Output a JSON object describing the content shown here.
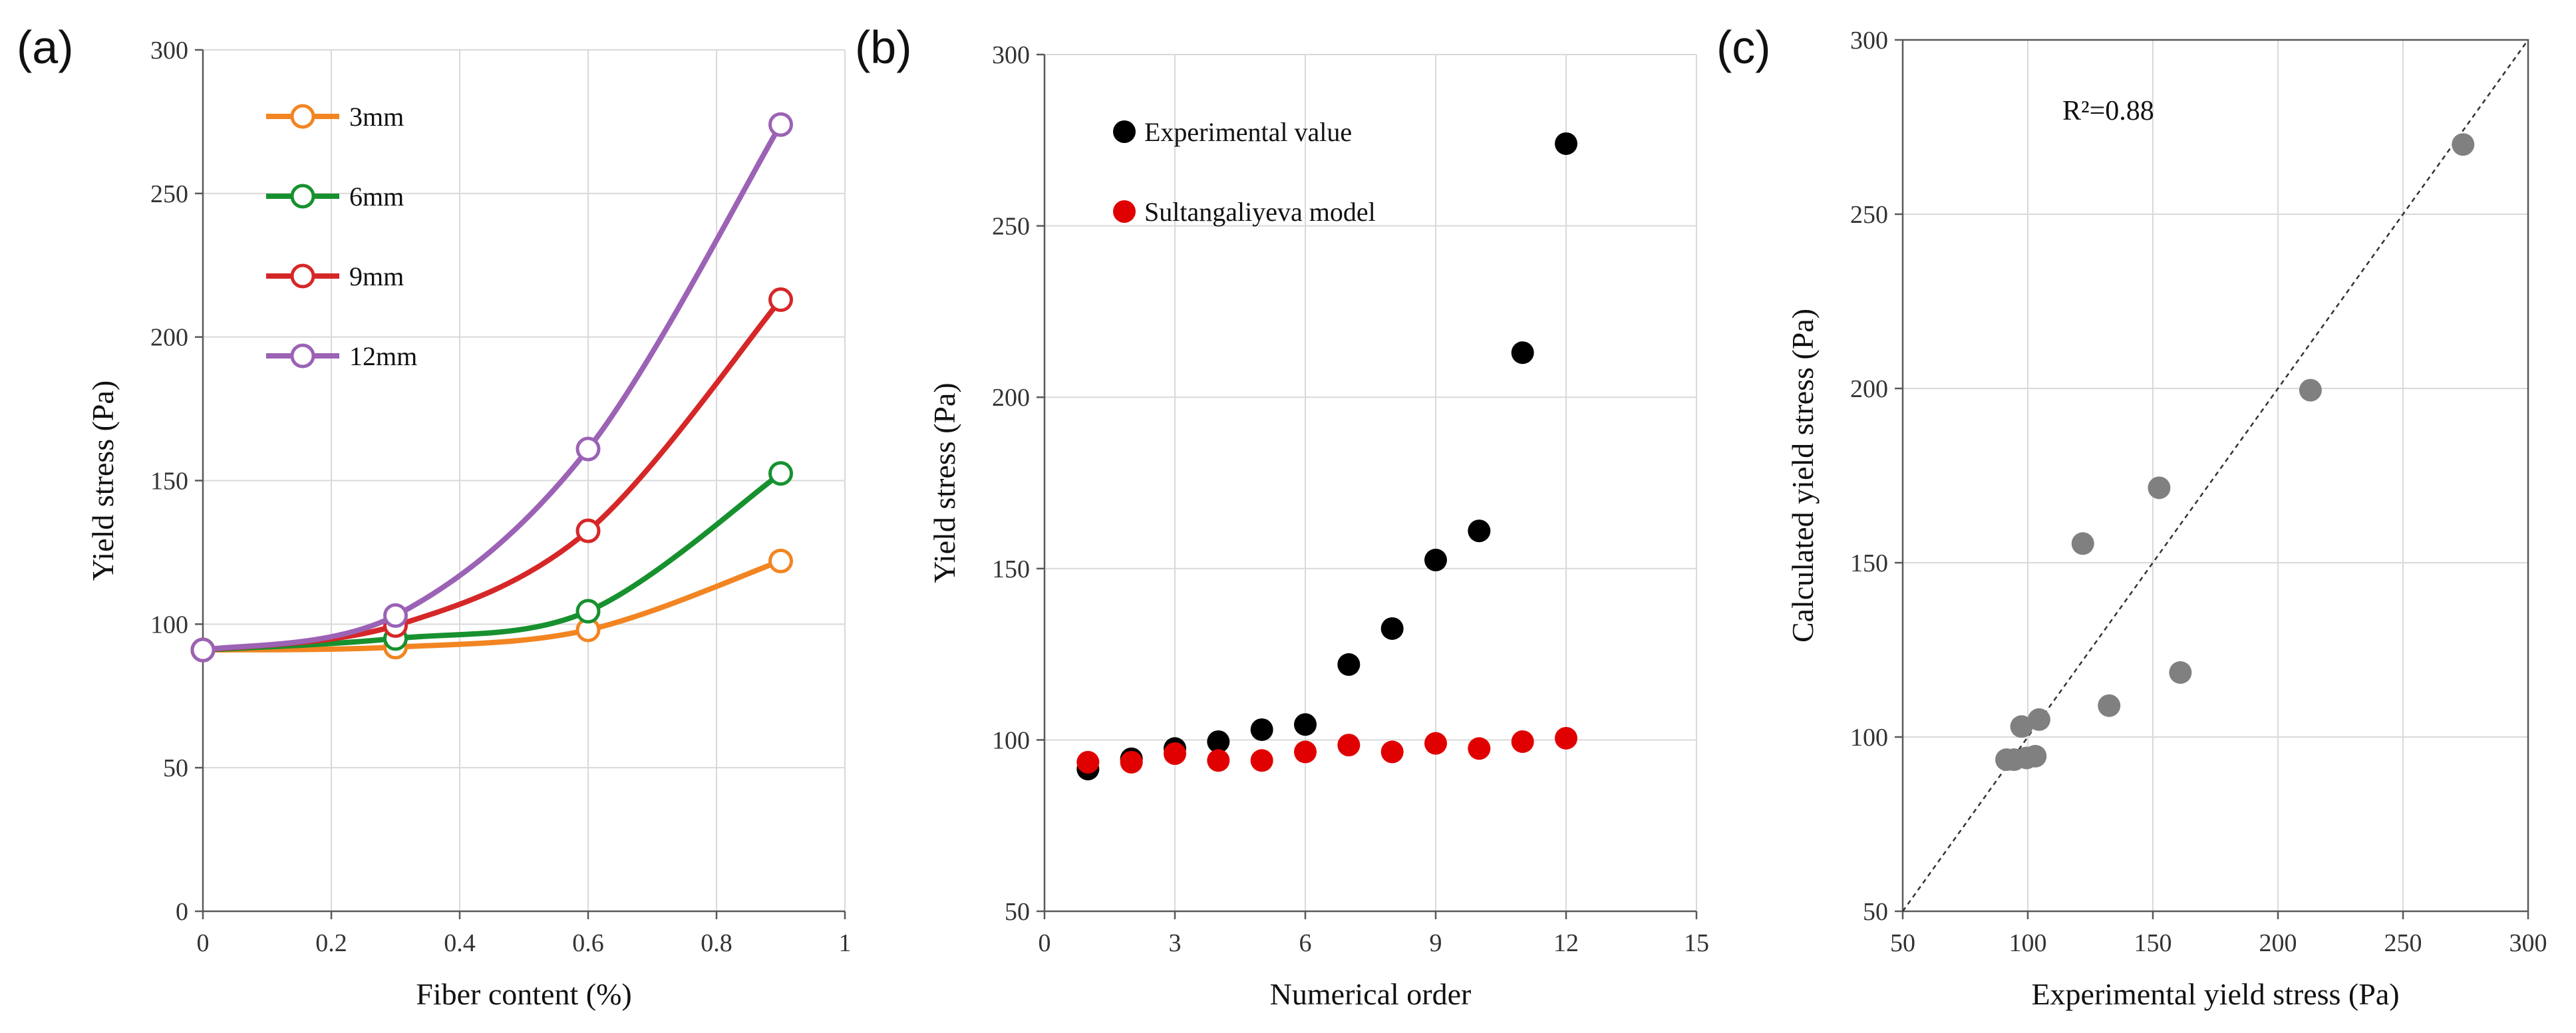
{
  "colors": {
    "3mm": "#F28522",
    "6mm": "#17912F",
    "9mm": "#D62728",
    "12mm": "#9B62B5",
    "experimental": "#000000",
    "model": "#E00000",
    "scatter": "#808080",
    "grid": "#D9D9D9"
  },
  "chart_data": [
    {
      "id": "a",
      "panel_label": "(a)",
      "type": "line",
      "xlabel": "Fiber content (%)",
      "ylabel": "Yield stress (Pa)",
      "xlim": [
        0,
        1
      ],
      "ylim": [
        0,
        300
      ],
      "xticks": [
        0,
        0.2,
        0.4,
        0.6,
        0.8,
        1
      ],
      "xtick_labels": [
        "0",
        "0.2",
        "0.4",
        "0.6",
        "0.8",
        "1"
      ],
      "yticks": [
        0,
        50,
        100,
        150,
        200,
        250,
        300
      ],
      "ytick_labels": [
        "0",
        "50",
        "100",
        "150",
        "200",
        "250",
        "300"
      ],
      "legend_position": "top-left",
      "series": [
        {
          "name": "3mm",
          "color_key": "3mm",
          "x": [
            0,
            0.3,
            0.6,
            0.9
          ],
          "y": [
            91,
            92,
            98,
            122
          ]
        },
        {
          "name": "6mm",
          "color_key": "6mm",
          "x": [
            0,
            0.3,
            0.6,
            0.9
          ],
          "y": [
            91,
            95,
            104.5,
            152.5
          ]
        },
        {
          "name": "9mm",
          "color_key": "9mm",
          "x": [
            0,
            0.3,
            0.6,
            0.9
          ],
          "y": [
            91,
            99.5,
            132.5,
            213
          ]
        },
        {
          "name": "12mm",
          "color_key": "12mm",
          "x": [
            0,
            0.3,
            0.6,
            0.9
          ],
          "y": [
            91,
            103,
            161,
            274
          ]
        }
      ]
    },
    {
      "id": "b",
      "panel_label": "(b)",
      "type": "scatter",
      "xlabel": "Numerical order",
      "ylabel": "Yield stress (Pa)",
      "xlim": [
        0,
        15
      ],
      "ylim": [
        50,
        300
      ],
      "xticks": [
        0,
        3,
        6,
        9,
        12,
        15
      ],
      "xtick_labels": [
        "0",
        "3",
        "6",
        "9",
        "12",
        "15"
      ],
      "yticks": [
        50,
        100,
        150,
        200,
        250,
        300
      ],
      "ytick_labels": [
        "50",
        "100",
        "150",
        "200",
        "250",
        "300"
      ],
      "legend_position": "top-left",
      "series": [
        {
          "name": "Experimental value",
          "color_key": "experimental",
          "x": [
            1,
            2,
            3,
            4,
            5,
            6,
            7,
            8,
            9,
            10,
            11,
            12
          ],
          "y": [
            91.5,
            94.5,
            97.5,
            99.5,
            103,
            104.5,
            122,
            132.5,
            152.5,
            161,
            213,
            274
          ]
        },
        {
          "name": "Sultangaliyeva model",
          "color_key": "model",
          "x": [
            1,
            2,
            3,
            4,
            5,
            6,
            7,
            8,
            9,
            10,
            11,
            12
          ],
          "y": [
            93.5,
            93.5,
            96,
            94,
            94,
            96.5,
            98.5,
            96.5,
            99,
            97.5,
            99.5,
            100.5
          ]
        }
      ]
    },
    {
      "id": "c",
      "panel_label": "(c)",
      "type": "scatter",
      "xlabel": "Experimental yield stress (Pa)",
      "ylabel": "Calculated yield stress (Pa)",
      "xlim": [
        50,
        300
      ],
      "ylim": [
        50,
        300
      ],
      "xticks": [
        50,
        100,
        150,
        200,
        250,
        300
      ],
      "xtick_labels": [
        "50",
        "100",
        "150",
        "200",
        "250",
        "300"
      ],
      "yticks": [
        50,
        100,
        150,
        200,
        250,
        300
      ],
      "ytick_labels": [
        "50",
        "100",
        "150",
        "200",
        "250",
        "300"
      ],
      "annotation": "R²=0.88",
      "reference_line": "y = x",
      "series": [
        {
          "name": "Calculated vs experimental",
          "color_key": "scatter",
          "x": [
            91.5,
            94.5,
            97.5,
            99.5,
            103,
            104.5,
            122,
            132.5,
            152.5,
            161,
            213,
            274
          ],
          "y": [
            93.5,
            93.5,
            103,
            94,
            94.5,
            105,
            155.5,
            109,
            171.5,
            118.5,
            199.5,
            270
          ]
        }
      ]
    }
  ]
}
